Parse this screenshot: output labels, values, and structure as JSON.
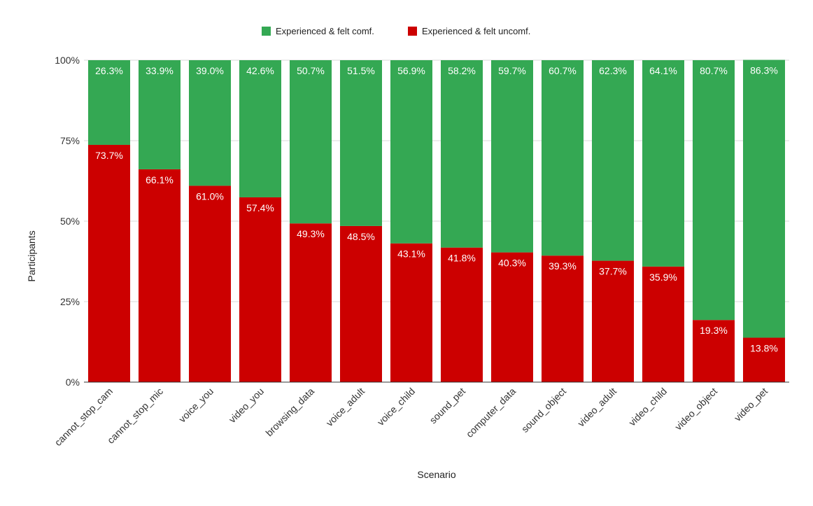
{
  "chart_data": {
    "type": "bar",
    "stacked": true,
    "title": "",
    "xlabel": "Scenario",
    "ylabel": "Participants",
    "ylim": [
      0,
      100
    ],
    "yticks": [
      "0%",
      "25%",
      "50%",
      "75%",
      "100%"
    ],
    "grid": true,
    "legend_position": "top-center",
    "categories": [
      "cannot_stop_cam",
      "cannot_stop_mic",
      "voice_you",
      "video_you",
      "browsing_data",
      "voice_adult",
      "voice_child",
      "sound_pet",
      "computer_data",
      "sound_object",
      "video_adult",
      "video_child",
      "video_object",
      "video_pet"
    ],
    "series": [
      {
        "name": "Experienced & felt uncomf.",
        "color": "#cc0000",
        "values": [
          73.7,
          66.1,
          61.0,
          57.4,
          49.3,
          48.5,
          43.1,
          41.8,
          40.3,
          39.3,
          37.7,
          35.9,
          19.3,
          13.8
        ],
        "labels": [
          "73.7%",
          "66.1%",
          "61.0%",
          "57.4%",
          "49.3%",
          "48.5%",
          "43.1%",
          "41.8%",
          "40.3%",
          "39.3%",
          "37.7%",
          "35.9%",
          "19.3%",
          "13.8%"
        ]
      },
      {
        "name": "Experienced & felt comf.",
        "color": "#34a853",
        "values": [
          26.3,
          33.9,
          39.0,
          42.6,
          50.7,
          51.5,
          56.9,
          58.2,
          59.7,
          60.7,
          62.3,
          64.1,
          80.7,
          86.3
        ],
        "labels": [
          "26.3%",
          "33.9%",
          "39.0%",
          "42.6%",
          "50.7%",
          "51.5%",
          "56.9%",
          "58.2%",
          "59.7%",
          "60.7%",
          "62.3%",
          "64.1%",
          "80.7%",
          "86.3%"
        ]
      }
    ],
    "legend": [
      {
        "name": "Experienced & felt comf.",
        "color": "#34a853"
      },
      {
        "name": "Experienced & felt uncomf.",
        "color": "#cc0000"
      }
    ]
  }
}
